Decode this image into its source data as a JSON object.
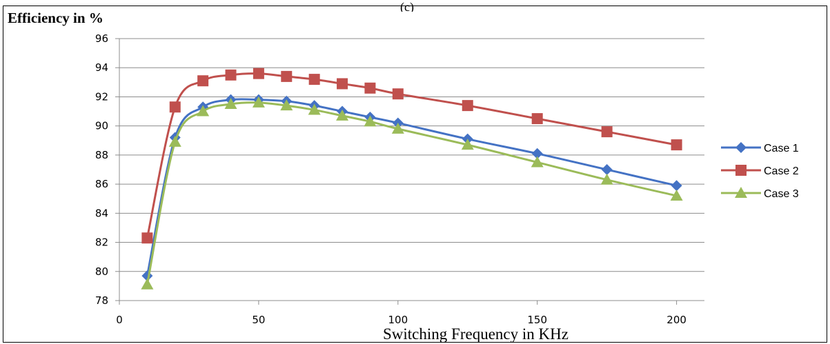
{
  "header": {
    "partial_caption": "(c)"
  },
  "chart_data": {
    "type": "line",
    "title": "",
    "ylabel": "Efficiency in %",
    "xlabel": "Switching Frequency in KHz",
    "xlim": [
      0,
      210
    ],
    "ylim": [
      78,
      96
    ],
    "x_ticks": [
      "0",
      "50",
      "100",
      "150",
      "200"
    ],
    "y_ticks": [
      "78",
      "80",
      "82",
      "84",
      "86",
      "88",
      "90",
      "92",
      "94",
      "96"
    ],
    "grid": "horizontal",
    "legend_position": "right",
    "x": [
      10,
      20,
      30,
      40,
      50,
      60,
      70,
      80,
      90,
      100,
      125,
      150,
      175,
      200
    ],
    "series": [
      {
        "name": "Case 1",
        "color": "#4472C4",
        "marker": "diamond",
        "values": [
          79.7,
          89.2,
          91.3,
          91.8,
          91.8,
          91.7,
          91.4,
          91.0,
          90.6,
          90.2,
          89.1,
          88.1,
          87.0,
          85.9
        ]
      },
      {
        "name": "Case 2",
        "color": "#C0504D",
        "marker": "square",
        "values": [
          82.3,
          91.3,
          93.1,
          93.5,
          93.6,
          93.4,
          93.2,
          92.9,
          92.6,
          92.2,
          91.4,
          90.5,
          89.6,
          88.7
        ]
      },
      {
        "name": "Case 3",
        "color": "#9BBB59",
        "marker": "triangle",
        "values": [
          79.1,
          88.9,
          91.0,
          91.5,
          91.6,
          91.4,
          91.1,
          90.7,
          90.3,
          89.8,
          88.7,
          87.5,
          86.3,
          85.2
        ]
      }
    ]
  }
}
